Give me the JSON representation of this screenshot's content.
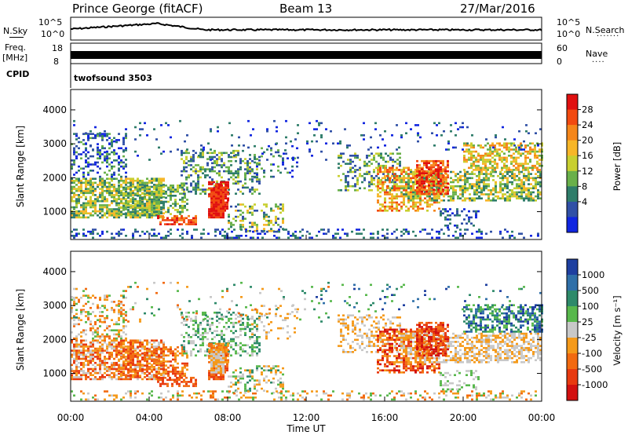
{
  "header": {
    "title": "Prince George (fitACF)",
    "beam": "Beam 13",
    "date": "27/Mar/2016"
  },
  "top_panels": {
    "nsky_label": "N.Sky",
    "nsky_ticks": [
      "10^5",
      "10^0"
    ],
    "nsearch_label": "N.Search",
    "nsearch_ticks": [
      "10^5",
      "10^0"
    ],
    "freq_label_1": "Freq.",
    "freq_label_2": "[MHz]",
    "freq_ticks": [
      "18",
      "8"
    ],
    "nave_label": "Nave",
    "nave_ticks": [
      "60",
      "0"
    ],
    "cpid_label": "CPID",
    "cpid_value": "twofsound 3503"
  },
  "chart_data": [
    {
      "type": "heatmap",
      "name": "power-panel",
      "ylabel": "Slant Range [km]",
      "yticks": [
        "4000",
        "3000",
        "2000",
        "1000"
      ],
      "ylim": [
        180,
        4600
      ],
      "colorbar_label": "Power [dB]",
      "colorbar_ticks": [
        "28",
        "24",
        "20",
        "16",
        "12",
        "8",
        "4"
      ],
      "colorbar_colors": [
        "#e01010",
        "#f24a10",
        "#f5861a",
        "#f7b628",
        "#c8cf30",
        "#69b04a",
        "#2f7d6a",
        "#3050a6",
        "#1025e0"
      ]
    },
    {
      "type": "heatmap",
      "name": "velocity-panel",
      "ylabel": "Slant Range [km]",
      "yticks": [
        "4000",
        "3000",
        "2000",
        "1000"
      ],
      "ylim": [
        180,
        4600
      ],
      "xlabel": "Time UT",
      "xticks": [
        "00:00",
        "04:00",
        "08:00",
        "12:00",
        "16:00",
        "20:00",
        "00:00"
      ],
      "colorbar_label": "Velocity [m s⁻¹]",
      "colorbar_ticks": [
        "1000",
        "500",
        "100",
        "25",
        "-25",
        "-100",
        "-500",
        "-1000"
      ],
      "colorbar_colors": [
        "#1e3fa0",
        "#2f6fa8",
        "#2e8a6a",
        "#58b84c",
        "#c8c8c8",
        "#f59a1a",
        "#f26a10",
        "#e83a10",
        "#d21010"
      ]
    }
  ]
}
